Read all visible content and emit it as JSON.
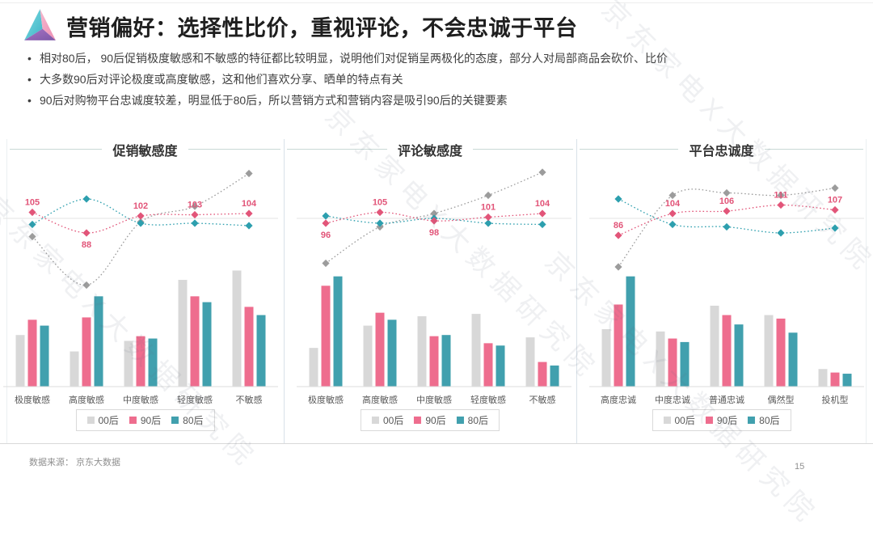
{
  "header": {
    "title": "营销偏好：选择性比价，重视评论，不会忠诚于平台",
    "bullets": [
      "相对80后， 90后促销极度敏感和不敏感的特征都比较明显，说明他们对促销呈两极化的态度，部分人对局部商品会砍价、比价",
      "大多数90后对评论极度或高度敏感，这和他们喜欢分享、晒单的特点有关",
      "90后对购物平台忠诚度较差，明显低于80后，所以营销方式和营销内容是吸引90后的关键要素"
    ]
  },
  "watermark": {
    "text": "京东家电X大数据研究院"
  },
  "footer": {
    "source": "数据来源： 京东大数据",
    "page_number": "15"
  },
  "colors": {
    "post00_bar": "#d8d8d8",
    "post90_bar": "#ee6d8e",
    "post80_bar": "#41a0ae",
    "post00_line": "#9c9c9c",
    "post90_line": "#e25579",
    "post80_line": "#2d9fae",
    "reference_line": "#e3e3e3",
    "axis_line": "#dedede",
    "panel_divider": "#d8e1e8",
    "title_rule": "#c9d9d6"
  },
  "legend": {
    "items": [
      {
        "label": "00后",
        "color_key": "post00_bar"
      },
      {
        "label": "90后",
        "color_key": "post90_bar"
      },
      {
        "label": "80后",
        "color_key": "post80_bar"
      }
    ]
  },
  "chart_data": [
    {
      "type": "bar+line",
      "title": "促销敏感度",
      "categories": [
        "极度敏感",
        "高度敏感",
        "中度敏感",
        "轻度敏感",
        "不敏感"
      ],
      "bar_series": [
        {
          "name": "00后",
          "color_key": "post00_bar",
          "values": [
            44,
            30,
            39,
            91,
            99
          ]
        },
        {
          "name": "90后",
          "color_key": "post90_bar",
          "values": [
            57,
            59,
            43,
            77,
            68
          ]
        },
        {
          "name": "80后",
          "color_key": "post80_bar",
          "values": [
            52,
            77,
            41,
            72,
            61
          ]
        }
      ],
      "line_series": [
        {
          "name": "00后",
          "color_key": "post00_line",
          "values": [
            85,
            45,
            97,
            110,
            137
          ],
          "labeled": false
        },
        {
          "name": "80后",
          "color_key": "post80_line",
          "values": [
            95,
            116,
            96,
            96,
            94
          ],
          "labeled": false
        },
        {
          "name": "90后",
          "color_key": "post90_line",
          "values": [
            105,
            88,
            102,
            103,
            104
          ],
          "labeled": true,
          "label_positions": [
            "above",
            "below",
            "above",
            "above",
            "above"
          ]
        }
      ],
      "reference_value": 100,
      "legend_position": "bottom"
    },
    {
      "type": "bar+line",
      "title": "评论敏感度",
      "categories": [
        "极度敏感",
        "高度敏感",
        "中度敏感",
        "轻度敏感",
        "不敏感"
      ],
      "bar_series": [
        {
          "name": "00后",
          "color_key": "post00_bar",
          "values": [
            33,
            52,
            60,
            62,
            42
          ]
        },
        {
          "name": "90后",
          "color_key": "post90_bar",
          "values": [
            86,
            63,
            43,
            37,
            21
          ]
        },
        {
          "name": "80后",
          "color_key": "post80_bar",
          "values": [
            94,
            57,
            44,
            35,
            18
          ]
        }
      ],
      "line_series": [
        {
          "name": "00后",
          "color_key": "post00_line",
          "values": [
            63,
            93,
            104,
            119,
            138
          ],
          "labeled": false
        },
        {
          "name": "80后",
          "color_key": "post80_line",
          "values": [
            102,
            96,
            100,
            96,
            95
          ],
          "labeled": false
        },
        {
          "name": "90后",
          "color_key": "post90_line",
          "values": [
            96,
            105,
            98,
            101,
            104
          ],
          "labeled": true,
          "label_positions": [
            "below",
            "above",
            "below",
            "above",
            "above"
          ]
        }
      ],
      "reference_value": 100,
      "legend_position": "bottom"
    },
    {
      "type": "bar+line",
      "title": "平台忠诚度",
      "categories": [
        "高度忠诚",
        "中度忠诚",
        "普通忠诚",
        "偶然型",
        "投机型"
      ],
      "bar_series": [
        {
          "name": "00后",
          "color_key": "post00_bar",
          "values": [
            49,
            47,
            69,
            61,
            15
          ]
        },
        {
          "name": "90后",
          "color_key": "post90_bar",
          "values": [
            70,
            41,
            61,
            58,
            12
          ]
        },
        {
          "name": "80后",
          "color_key": "post80_bar",
          "values": [
            94,
            38,
            53,
            46,
            11
          ]
        }
      ],
      "line_series": [
        {
          "name": "00后",
          "color_key": "post00_line",
          "values": [
            60,
            119,
            121,
            119,
            125
          ],
          "labeled": false
        },
        {
          "name": "80后",
          "color_key": "post80_line",
          "values": [
            116,
            95,
            93,
            88,
            92
          ],
          "labeled": false
        },
        {
          "name": "90后",
          "color_key": "post90_line",
          "values": [
            86,
            104,
            106,
            111,
            107
          ],
          "labeled": true,
          "label_positions": [
            "above",
            "above",
            "above",
            "above",
            "above"
          ]
        }
      ],
      "reference_value": 100,
      "legend_position": "bottom"
    }
  ]
}
